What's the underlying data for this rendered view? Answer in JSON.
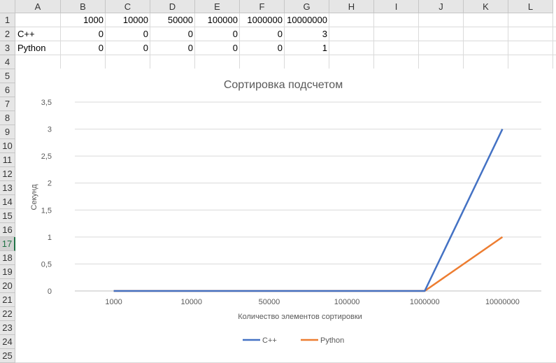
{
  "sheet": {
    "columns": [
      "A",
      "B",
      "C",
      "D",
      "E",
      "F",
      "G",
      "H",
      "I",
      "J",
      "K",
      "L"
    ],
    "rows": [
      "1",
      "2",
      "3",
      "4",
      "5",
      "6",
      "7",
      "8",
      "9",
      "10",
      "11",
      "12",
      "13",
      "14",
      "15",
      "16",
      "17",
      "18",
      "19",
      "20",
      "21",
      "22",
      "23",
      "24",
      "25"
    ],
    "active_row": "17",
    "table": {
      "header": [
        "",
        "1000",
        "10000",
        "50000",
        "100000",
        "1000000",
        "10000000"
      ],
      "rows": [
        [
          "C++",
          "0",
          "0",
          "0",
          "0",
          "0",
          "3"
        ],
        [
          "Python",
          "0",
          "0",
          "0",
          "0",
          "0",
          "1"
        ]
      ]
    }
  },
  "chart_data": {
    "type": "line",
    "title": "Сортировка подсчетом",
    "xlabel": "Количество элементов сортировки",
    "ylabel": "Секунд",
    "categories": [
      "1000",
      "10000",
      "50000",
      "100000",
      "1000000",
      "10000000"
    ],
    "y_ticks": [
      "0",
      "0,5",
      "1",
      "1,5",
      "2",
      "2,5",
      "3",
      "3,5"
    ],
    "ylim": [
      0,
      3.5
    ],
    "grid": true,
    "legend_position": "bottom",
    "series": [
      {
        "name": "C++",
        "values": [
          0,
          0,
          0,
          0,
          0,
          3
        ],
        "color": "#4472c4"
      },
      {
        "name": "Python",
        "values": [
          0,
          0,
          0,
          0,
          0,
          1
        ],
        "color": "#ed7d31"
      }
    ]
  }
}
